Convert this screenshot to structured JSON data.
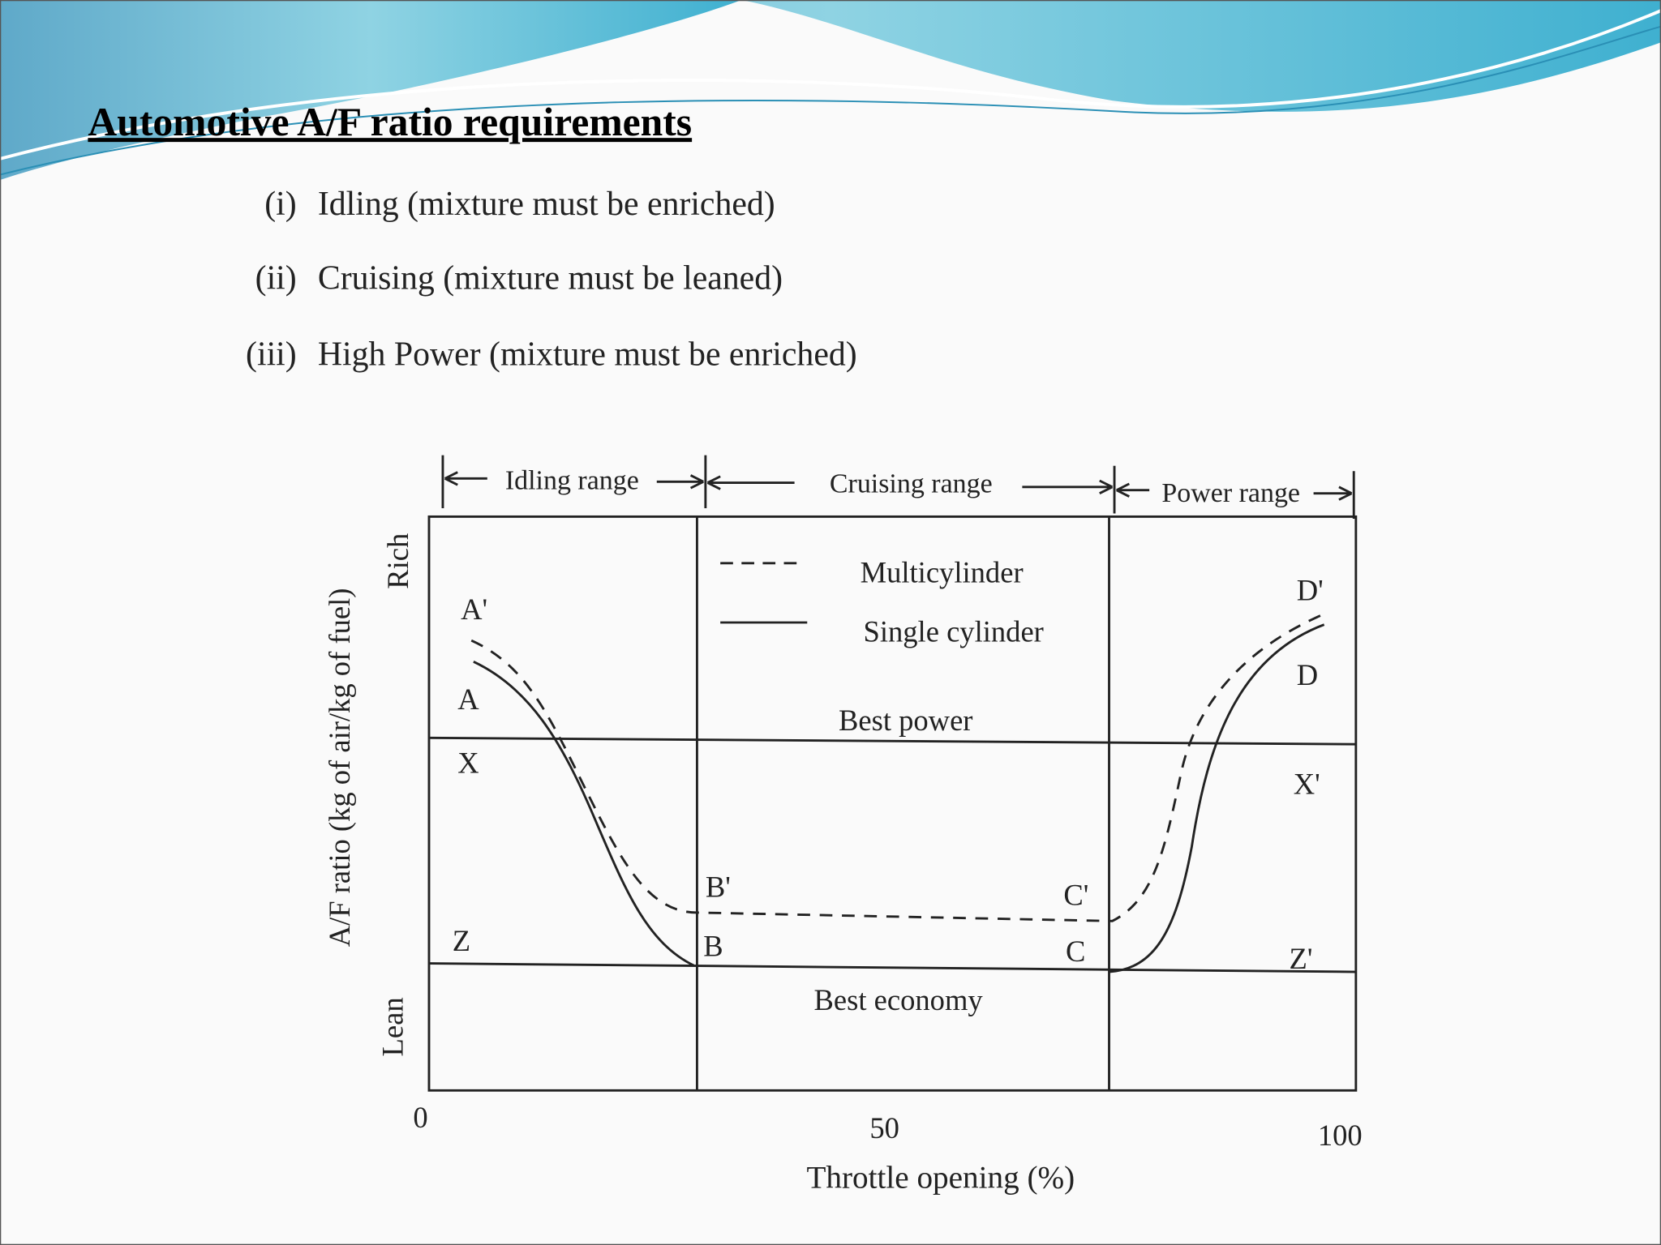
{
  "header": {
    "title": "Automotive A/F ratio requirements"
  },
  "list": [
    {
      "marker": "(i)",
      "text": "Idling (mixture must be enriched)"
    },
    {
      "marker": "(ii)",
      "text": "Cruising (mixture must be leaned)"
    },
    {
      "marker": "(iii)",
      "text": "High Power (mixture must be enriched)"
    }
  ],
  "diagram": {
    "ranges": [
      "Idling range",
      "Cruising range",
      "Power range"
    ],
    "legend": [
      "Multicylinder",
      "Single cylinder"
    ],
    "regions": [
      "Best power",
      "Best economy"
    ],
    "point_labels": [
      "A'",
      "A",
      "X",
      "Z",
      "B'",
      "B",
      "C'",
      "C",
      "D'",
      "D",
      "X'",
      "Z'"
    ],
    "y_axis": {
      "label": "A/F ratio (kg of air/kg of fuel)",
      "top": "Rich",
      "bottom": "Lean"
    },
    "x_axis": {
      "label": "Throttle opening (%)",
      "ticks": [
        0,
        50,
        100
      ]
    }
  }
}
